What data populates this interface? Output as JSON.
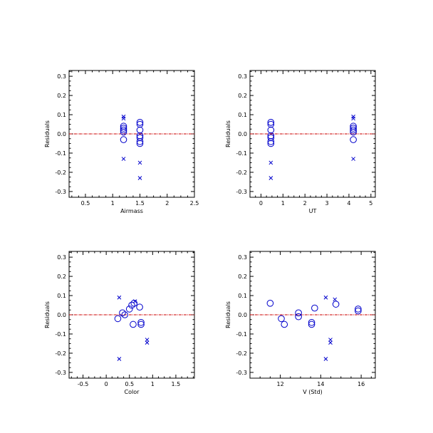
{
  "colors": {
    "marker": "#0000cc",
    "zero_line": "#cc0000",
    "axes": "#000000"
  },
  "chart_data": [
    {
      "type": "scatter",
      "xlabel": "Airmass",
      "ylabel": "Residuals",
      "xlim": [
        0.2,
        2.5
      ],
      "ylim": [
        -0.33,
        0.33
      ],
      "xticks": [
        0.5,
        1.0,
        1.5,
        2.0,
        2.5
      ],
      "xtick_labels": [
        "0.5",
        "1",
        "1.5",
        "2",
        "2.5"
      ],
      "yticks": [
        -0.3,
        -0.2,
        -0.1,
        0.0,
        0.1,
        0.2,
        0.3
      ],
      "ytick_labels": [
        "-0.3",
        "-0.2",
        "-0.1",
        "0.0",
        "0.1",
        "0.2",
        "0.3"
      ],
      "zero_line": 0,
      "series": [
        {
          "marker": "circle",
          "points": [
            [
              1.2,
              0.04
            ],
            [
              1.2,
              0.03
            ],
            [
              1.2,
              0.02
            ],
            [
              1.2,
              0.01
            ],
            [
              1.2,
              -0.03
            ],
            [
              1.5,
              0.06
            ],
            [
              1.5,
              0.05
            ],
            [
              1.5,
              0.02
            ],
            [
              1.5,
              -0.01
            ],
            [
              1.5,
              -0.02
            ],
            [
              1.5,
              -0.04
            ],
            [
              1.5,
              -0.05
            ]
          ]
        },
        {
          "marker": "cross",
          "points": [
            [
              1.2,
              0.09
            ],
            [
              1.2,
              0.08
            ],
            [
              1.2,
              -0.13
            ],
            [
              1.5,
              -0.15
            ],
            [
              1.5,
              -0.23
            ]
          ]
        }
      ]
    },
    {
      "type": "scatter",
      "xlabel": "UT",
      "ylabel": "Residuals",
      "xlim": [
        -0.5,
        5.2
      ],
      "ylim": [
        -0.33,
        0.33
      ],
      "xticks": [
        0,
        1,
        2,
        3,
        4,
        5
      ],
      "xtick_labels": [
        "0",
        "1",
        "2",
        "3",
        "4",
        "5"
      ],
      "yticks": [
        -0.3,
        -0.2,
        -0.1,
        0.0,
        0.1,
        0.2,
        0.3
      ],
      "ytick_labels": [
        "-0.3",
        "-0.2",
        "-0.1",
        "0.0",
        "0.1",
        "0.2",
        "0.3"
      ],
      "zero_line": 0,
      "series": [
        {
          "marker": "circle",
          "points": [
            [
              0.45,
              0.06
            ],
            [
              0.45,
              0.05
            ],
            [
              0.45,
              0.02
            ],
            [
              0.45,
              -0.01
            ],
            [
              0.45,
              -0.02
            ],
            [
              0.45,
              -0.04
            ],
            [
              0.45,
              -0.05
            ],
            [
              4.2,
              0.04
            ],
            [
              4.2,
              0.03
            ],
            [
              4.2,
              0.02
            ],
            [
              4.2,
              0.01
            ],
            [
              4.2,
              -0.03
            ]
          ]
        },
        {
          "marker": "cross",
          "points": [
            [
              0.45,
              -0.15
            ],
            [
              0.45,
              -0.23
            ],
            [
              4.2,
              0.09
            ],
            [
              4.2,
              0.08
            ],
            [
              4.2,
              -0.13
            ]
          ]
        }
      ]
    },
    {
      "type": "scatter",
      "xlabel": "Color",
      "ylabel": "Residuals",
      "xlim": [
        -0.8,
        1.9
      ],
      "ylim": [
        -0.33,
        0.33
      ],
      "xticks": [
        -0.5,
        0.0,
        0.5,
        1.0,
        1.5
      ],
      "xtick_labels": [
        "-0.5",
        "0",
        "0.5",
        "1",
        "1.5"
      ],
      "yticks": [
        -0.3,
        -0.2,
        -0.1,
        0.0,
        0.1,
        0.2,
        0.3
      ],
      "ytick_labels": [
        "-0.3",
        "-0.2",
        "-0.1",
        "0.0",
        "0.1",
        "0.2",
        "0.3"
      ],
      "zero_line": 0,
      "series": [
        {
          "marker": "circle",
          "points": [
            [
              0.25,
              -0.02
            ],
            [
              0.35,
              0.01
            ],
            [
              0.4,
              0.0
            ],
            [
              0.5,
              0.03
            ],
            [
              0.55,
              0.05
            ],
            [
              0.6,
              0.06
            ],
            [
              0.58,
              -0.05
            ],
            [
              0.72,
              0.04
            ],
            [
              0.75,
              -0.04
            ],
            [
              0.75,
              -0.05
            ]
          ]
        },
        {
          "marker": "cross",
          "points": [
            [
              0.28,
              0.09
            ],
            [
              0.28,
              -0.23
            ],
            [
              0.62,
              0.07
            ],
            [
              0.88,
              -0.13
            ],
            [
              0.88,
              -0.145
            ]
          ]
        }
      ]
    },
    {
      "type": "scatter",
      "xlabel": "V (Std)",
      "ylabel": "Residuals",
      "xlim": [
        10.5,
        16.7
      ],
      "ylim": [
        -0.33,
        0.33
      ],
      "xticks": [
        12,
        14,
        16
      ],
      "xtick_labels": [
        "12",
        "14",
        "16"
      ],
      "yticks": [
        -0.3,
        -0.2,
        -0.1,
        0.0,
        0.1,
        0.2,
        0.3
      ],
      "ytick_labels": [
        "-0.3",
        "-0.2",
        "-0.1",
        "0.0",
        "0.1",
        "0.2",
        "0.3"
      ],
      "zero_line": 0,
      "series": [
        {
          "marker": "circle",
          "points": [
            [
              11.5,
              0.06
            ],
            [
              12.05,
              -0.02
            ],
            [
              12.2,
              -0.05
            ],
            [
              12.9,
              0.01
            ],
            [
              12.9,
              -0.01
            ],
            [
              13.55,
              -0.04
            ],
            [
              13.55,
              -0.05
            ],
            [
              13.7,
              0.035
            ],
            [
              14.75,
              0.055
            ],
            [
              15.85,
              0.03
            ],
            [
              15.85,
              0.02
            ]
          ]
        },
        {
          "marker": "cross",
          "points": [
            [
              14.25,
              0.09
            ],
            [
              14.25,
              -0.23
            ],
            [
              14.48,
              -0.13
            ],
            [
              14.48,
              -0.145
            ],
            [
              14.7,
              0.08
            ]
          ]
        }
      ]
    }
  ]
}
